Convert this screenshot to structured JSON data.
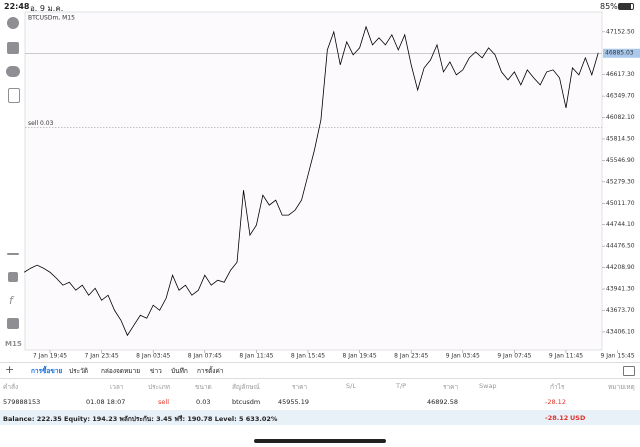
{
  "status_bar": {
    "time": "22:48",
    "date": "อ. 9 ม.ค.",
    "battery": "85%"
  },
  "chart_data": {
    "type": "line",
    "title": "BTCUSDm, M15",
    "categories": [
      null,
      null,
      null,
      null,
      "7 Jan 19:45",
      null,
      null,
      null,
      null,
      null,
      null,
      null,
      "7 Jan 23:45",
      null,
      null,
      null,
      null,
      null,
      null,
      null,
      "8 Jan 03:45",
      null,
      null,
      null,
      null,
      null,
      null,
      null,
      "8 Jan 07:45",
      null,
      null,
      null,
      null,
      null,
      null,
      null,
      "8 Jan 11:45",
      null,
      null,
      null,
      null,
      null,
      null,
      null,
      "8 Jan 15:45",
      null,
      null,
      null,
      null,
      null,
      null,
      null,
      "8 Jan 19:45",
      null,
      null,
      null,
      null,
      null,
      null,
      null,
      "8 Jan 23:45",
      null,
      null,
      null,
      null,
      null,
      null,
      null,
      "9 Jan 03:45",
      null,
      null,
      null,
      null,
      null,
      null,
      null,
      "9 Jan 07:45",
      null,
      null,
      null,
      null,
      null,
      null,
      null,
      "9 Jan 11:45",
      null,
      null,
      null,
      null,
      null,
      null,
      null,
      "9 Jan 15:45"
    ],
    "values": [
      44151,
      44201,
      44239,
      44201,
      44151,
      44076,
      43989,
      44026,
      43926,
      43989,
      43864,
      43951,
      43801,
      43864,
      43676,
      43551,
      43363,
      43488,
      43613,
      43576,
      43739,
      43676,
      43826,
      44114,
      43926,
      43989,
      43864,
      43926,
      44114,
      43989,
      44051,
      44026,
      44176,
      44276,
      45176,
      44614,
      44739,
      45114,
      44989,
      45051,
      44864,
      44864,
      44926,
      45051,
      45364,
      45677,
      46052,
      46927,
      47152,
      46740,
      47027,
      46865,
      46952,
      47215,
      46990,
      47077,
      46990,
      47115,
      46927,
      47115,
      46740,
      46427,
      46702,
      46802,
      46990,
      46652,
      46777,
      46615,
      46677,
      46827,
      46902,
      46827,
      46952,
      46865,
      46652,
      46552,
      46652,
      46490,
      46677,
      46577,
      46490,
      46652,
      46677,
      46577,
      46202,
      46702,
      46615,
      46827,
      46615,
      46890,
      null,
      null,
      null
    ],
    "color": "#000000",
    "ylim": [
      43180,
      47400
    ],
    "yticks": [
      {
        "value": 47152.5,
        "label": "47152.50"
      },
      {
        "value": 46617.3,
        "label": "46617.30"
      },
      {
        "value": 46349.7,
        "label": "46349.70"
      },
      {
        "value": 46082.1,
        "label": "46082.10"
      },
      {
        "value": 45814.5,
        "label": "45814.50"
      },
      {
        "value": 45546.9,
        "label": "45546.90"
      },
      {
        "value": 45279.3,
        "label": "45279.30"
      },
      {
        "value": 45011.7,
        "label": "45011.70"
      },
      {
        "value": 44744.1,
        "label": "44744.10"
      },
      {
        "value": 44476.5,
        "label": "44476.50"
      },
      {
        "value": 44208.9,
        "label": "44208.90"
      },
      {
        "value": 43941.3,
        "label": "43941.30"
      },
      {
        "value": 43673.7,
        "label": "43673.70"
      },
      {
        "value": 43406.1,
        "label": "43406.10"
      }
    ],
    "current_price": 46885.03,
    "position_line": {
      "label": "sell 0.03",
      "value": 45955.19
    }
  },
  "toolbar": {
    "timeframe": "M15"
  },
  "tabs": [
    "การซื้อขาย",
    "ประวัติ",
    "กล่องจดหมาย",
    "ข่าว",
    "บันทึก",
    "การตั้งค่า"
  ],
  "table": {
    "headers": [
      "คำสั่ง",
      "เวลา",
      "ประเภท",
      "ขนาด",
      "สัญลักษณ์",
      "ราคา",
      "S/L",
      "T/P",
      "ราคา",
      "Swap",
      "กำไร",
      "หมายเหตุ"
    ],
    "rows": [
      {
        "order": "579888153",
        "time": "01.08 18:07",
        "type": "sell",
        "volume": "0.03",
        "symbol": "btcusdm",
        "open_price": "45955.19",
        "current_price": "46892.58",
        "profit": "-28.12"
      }
    ]
  },
  "footer": {
    "summary": "Balance: 222.35 Equity: 194.23 พลักประกัน: 3.45 ฟรี: 190.78 Level: 5 633.02%",
    "profit": "-28.12",
    "currency": "USD"
  }
}
